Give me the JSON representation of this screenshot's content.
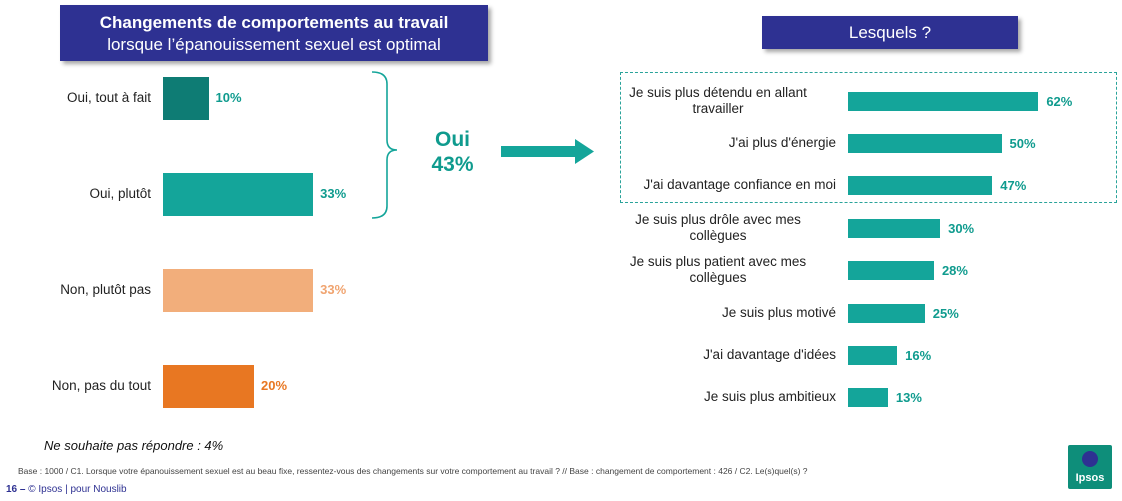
{
  "left_title": {
    "line1": "Changements de comportements au travail",
    "line2": "lorsque l’épanouissement sexuel est optimal"
  },
  "right_title": "Lesquels ?",
  "summary": {
    "label": "Oui",
    "value": "43%"
  },
  "no_answer_note": "Ne souhaite pas répondre : 4%",
  "base_note": "Base : 1000 / C1. Lorsque votre épanouissement sexuel est au beau fixe, ressentez-vous des changements sur votre comportement au travail ? // Base : changement de comportement : 426 / C2. Le(s)quel(s) ?",
  "footer": {
    "page": "16 –",
    "text": "© Ipsos | pour Nouslib"
  },
  "logo_text": "Ipsos",
  "colors": {
    "title_bg": "#2e3192",
    "teal_dark": "#0e7c74",
    "teal": "#14a59a",
    "peach": "#f2ae7b",
    "orange": "#e87722",
    "teal_text": "#0f9b8e",
    "orange_text": "#f0a470",
    "orange_strong_text": "#e87722"
  },
  "chart_data": [
    {
      "type": "bar",
      "orientation": "horizontal",
      "title": "Changements de comportements au travail lorsque l’épanouissement sexuel est optimal",
      "categories": [
        "Oui, tout à fait",
        "Oui, plutôt",
        "Non, plutôt pas",
        "Non, pas du tout"
      ],
      "values": [
        10,
        33,
        33,
        20
      ],
      "value_labels": [
        "10%",
        "33%",
        "33%",
        "20%"
      ],
      "bar_colors": [
        "#0e7c74",
        "#14a59a",
        "#f2ae7b",
        "#e87722"
      ],
      "label_colors": [
        "#0f9b8e",
        "#0f9b8e",
        "#f0a470",
        "#e87722"
      ],
      "xlim": [
        0,
        100
      ]
    },
    {
      "type": "bar",
      "orientation": "horizontal",
      "title": "Lesquels ?",
      "categories": [
        [
          "Je suis plus détendu en allant",
          "travailler"
        ],
        [
          "J'ai plus d'énergie"
        ],
        [
          "J'ai davantage confiance en moi"
        ],
        [
          "Je suis plus drôle avec mes",
          "collègues"
        ],
        [
          "Je suis plus patient avec mes",
          "collègues"
        ],
        [
          "Je suis plus motivé"
        ],
        [
          "J'ai davantage d'idées"
        ],
        [
          "Je suis plus ambitieux"
        ]
      ],
      "values": [
        62,
        50,
        47,
        30,
        28,
        25,
        16,
        13
      ],
      "value_labels": [
        "62%",
        "50%",
        "47%",
        "30%",
        "28%",
        "25%",
        "16%",
        "13%"
      ],
      "bar_color": "#14a59a",
      "label_color": "#0f9b8e",
      "xlim": [
        0,
        100
      ]
    }
  ]
}
